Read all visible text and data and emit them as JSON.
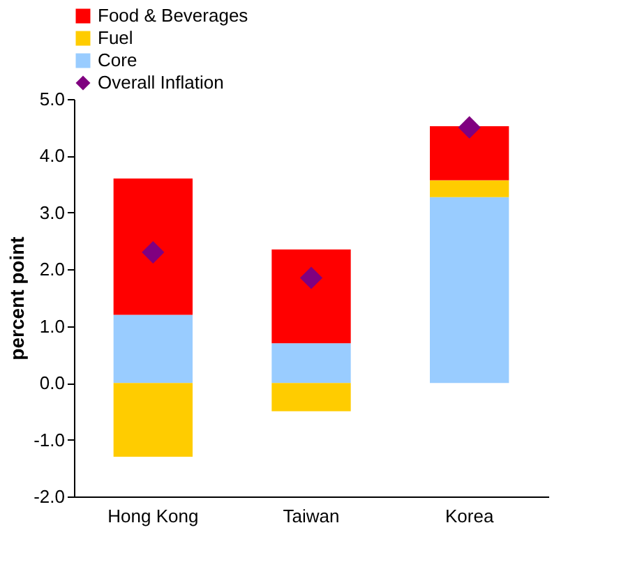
{
  "chart_data": {
    "type": "bar",
    "stacked": true,
    "ylabel": "percent point",
    "categories": [
      "Hong Kong",
      "Taiwan",
      "Korea"
    ],
    "series": [
      {
        "name": "Core",
        "color": "#99ccff",
        "values": [
          1.2,
          0.7,
          3.27
        ]
      },
      {
        "name": "Fuel",
        "color": "#ffcc00",
        "values": [
          -1.3,
          -0.5,
          0.3
        ]
      },
      {
        "name": "Food & Beverages",
        "color": "#ff0000",
        "values": [
          2.4,
          1.65,
          0.95
        ]
      },
      {
        "name": "Overall Inflation",
        "type": "scatter",
        "marker": "diamond",
        "color": "#800080",
        "values": [
          2.3,
          1.85,
          4.5
        ]
      }
    ],
    "ylim": [
      -2,
      5
    ],
    "yticks": [
      {
        "value": -2,
        "label": "-2.0"
      },
      {
        "value": -1,
        "label": "-1.0"
      },
      {
        "value": 0,
        "label": "0.0"
      },
      {
        "value": 1,
        "label": "1.0"
      },
      {
        "value": 2,
        "label": "2.0"
      },
      {
        "value": 3,
        "label": "3.0"
      },
      {
        "value": 4,
        "label": "4.0"
      },
      {
        "value": 5,
        "label": "5.0"
      }
    ],
    "grid": false,
    "legend": "top"
  }
}
